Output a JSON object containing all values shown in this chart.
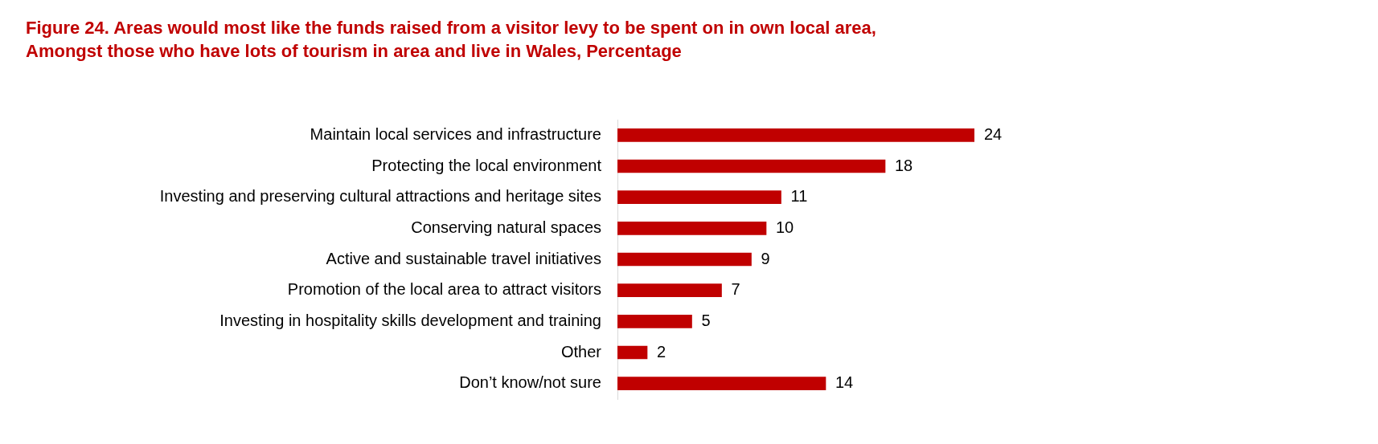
{
  "chart_data": {
    "type": "bar",
    "orientation": "horizontal",
    "title": "Figure 24. Areas would most like the funds raised from a visitor levy to be spent on in own local area,\nAmongst those who have lots of tourism in area and live in Wales, Percentage",
    "categories": [
      "Maintain local services and infrastructure",
      "Protecting the local environment",
      "Investing and preserving cultural attractions and heritage sites",
      "Conserving natural spaces",
      "Active and sustainable travel initiatives",
      "Promotion of the local area to attract visitors",
      "Investing in hospitality skills development and training",
      "Other",
      "Don’t know/not sure"
    ],
    "values": [
      24,
      18,
      11,
      10,
      9,
      7,
      5,
      2,
      14
    ],
    "color": "#c00000",
    "data_labels": true
  }
}
